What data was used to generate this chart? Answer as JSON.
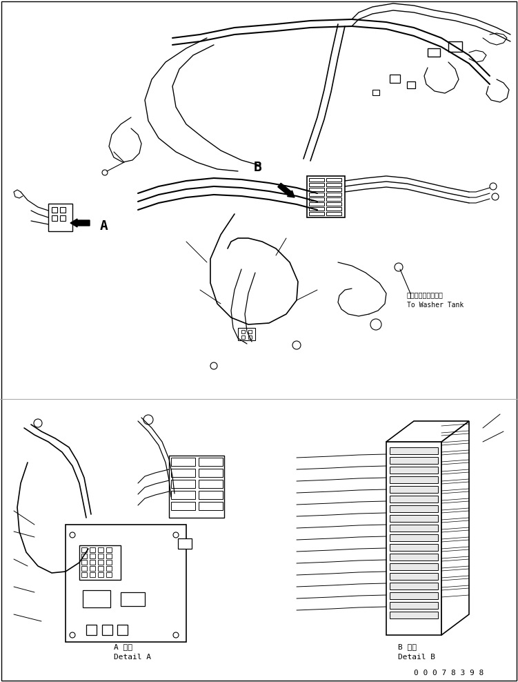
{
  "title": "",
  "background_color": "#ffffff",
  "line_color": "#000000",
  "text_color": "#000000",
  "part_number": "0 0 0 7 8 3 9 8",
  "label_A_jp": "A 詳細",
  "label_A_en": "Detail A",
  "label_B_jp": "B 詳細",
  "label_B_en": "Detail B",
  "label_A_marker": "A",
  "label_B_marker": "B",
  "washer_jp": "ウォッシャタンクヘ",
  "washer_en": "To Washer Tank",
  "fig_width": 7.51,
  "fig_height": 9.88,
  "dpi": 100
}
